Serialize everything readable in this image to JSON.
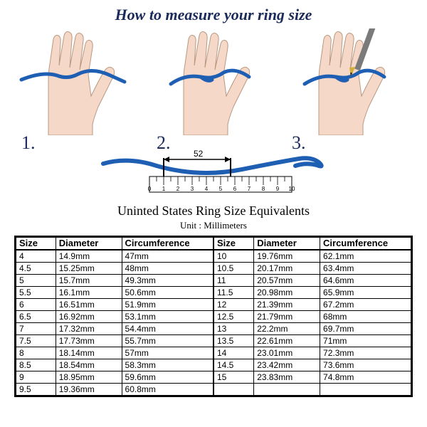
{
  "title": "How to measure your ring size",
  "steps": [
    "1.",
    "2.",
    "3."
  ],
  "ruler": {
    "measurement_label": "52",
    "ticks": [
      "0",
      "1",
      "2",
      "3",
      "4",
      "5",
      "6",
      "7",
      "8",
      "9",
      "10"
    ]
  },
  "table": {
    "title": "Uninted States Ring Size Equivalents",
    "unit_label": "Unit : Millimeters",
    "headers": [
      "Size",
      "Diameter",
      "Circumference",
      "Size",
      "Diameter",
      "Circumference"
    ],
    "rows": [
      [
        "4",
        "14.9mm",
        "47mm",
        "10",
        "19.76mm",
        "62.1mm"
      ],
      [
        "4.5",
        "15.25mm",
        "48mm",
        "10.5",
        "20.17mm",
        "63.4mm"
      ],
      [
        "5",
        "15.7mm",
        "49.3mm",
        "11",
        "20.57mm",
        "64.6mm"
      ],
      [
        "5.5",
        "16.1mm",
        "50.6mm",
        "11.5",
        "20.98mm",
        "65.9mm"
      ],
      [
        "6",
        "16.51mm",
        "51.9mm",
        "12",
        "21.39mm",
        "67.2mm"
      ],
      [
        "6.5",
        "16.92mm",
        "53.1mm",
        "12.5",
        "21.79mm",
        "68mm"
      ],
      [
        "7",
        "17.32mm",
        "54.4mm",
        "13",
        "22.2mm",
        "69.7mm"
      ],
      [
        "7.5",
        "17.73mm",
        "55.7mm",
        "13.5",
        "22.61mm",
        "71mm"
      ],
      [
        "8",
        "18.14mm",
        "57mm",
        "14",
        "23.01mm",
        "72.3mm"
      ],
      [
        "8.5",
        "18.54mm",
        "58.3mm",
        "14.5",
        "23.42mm",
        "73.6mm"
      ],
      [
        "9",
        "18.95mm",
        "59.6mm",
        "15",
        "23.83mm",
        "74.8mm"
      ],
      [
        "9.5",
        "19.36mm",
        "60.8mm",
        "",
        "",
        ""
      ]
    ]
  },
  "colors": {
    "title": "#1a2a5a",
    "hand_fill": "#f5d8c8",
    "string": "#1e5fb3",
    "pen_body": "#7a7a7a",
    "pen_tip": "#d4af37",
    "table_border": "#000000"
  }
}
